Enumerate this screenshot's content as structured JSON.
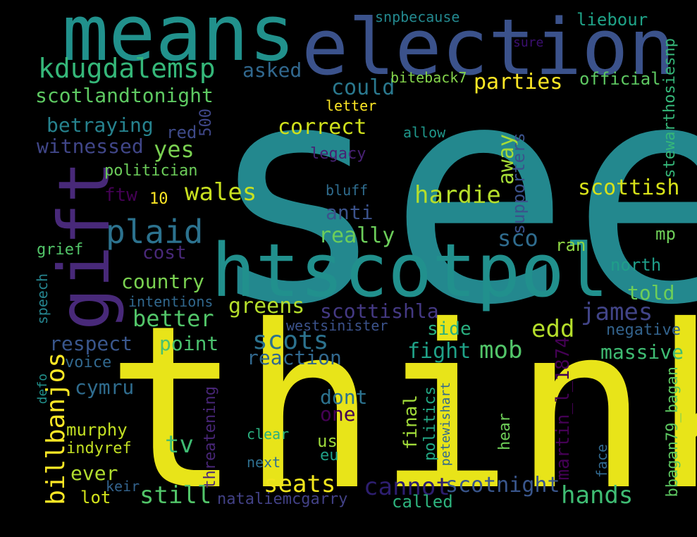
{
  "words": [
    {
      "text": "see",
      "color": "#23888e"
    },
    {
      "text": "think",
      "color": "#e8e419"
    },
    {
      "text": "election",
      "color": "#3b528b"
    },
    {
      "text": "means",
      "color": "#21918c"
    },
    {
      "text": "htscotpol",
      "color": "#21908d"
    },
    {
      "text": "gift",
      "color": "#482979"
    },
    {
      "text": "kdugdalemsp",
      "color": "#35b779"
    },
    {
      "text": "plaid",
      "color": "#2c728e"
    },
    {
      "text": "scotlandtonight",
      "color": "#5ec962"
    },
    {
      "text": "betraying",
      "color": "#26828e"
    },
    {
      "text": "witnessed",
      "color": "#404688"
    },
    {
      "text": "yes",
      "color": "#7ad151"
    },
    {
      "text": "red",
      "color": "#3e4a89"
    },
    {
      "text": "politician",
      "color": "#6ccd5a"
    },
    {
      "text": "ftw",
      "color": "#440154"
    },
    {
      "text": "10",
      "color": "#fde725"
    },
    {
      "text": "wales",
      "color": "#c8e020"
    },
    {
      "text": "500",
      "color": "#3f4788"
    },
    {
      "text": "asked",
      "color": "#31688e"
    },
    {
      "text": "could",
      "color": "#2a788e"
    },
    {
      "text": "parties",
      "color": "#fde725"
    },
    {
      "text": "correct",
      "color": "#d0e11c"
    },
    {
      "text": "letter",
      "color": "#fde725"
    },
    {
      "text": "biteback7",
      "color": "#84d44b"
    },
    {
      "text": "official",
      "color": "#5ec962"
    },
    {
      "text": "snpbecause",
      "color": "#23888e"
    },
    {
      "text": "liebour",
      "color": "#1fa287"
    },
    {
      "text": "sure",
      "color": "#3b0f70"
    },
    {
      "text": "allow",
      "color": "#1f978b"
    },
    {
      "text": "stewarthosiesnp",
      "color": "#35b779"
    },
    {
      "text": "legacy",
      "color": "#482173"
    },
    {
      "text": "away",
      "color": "#a5db36"
    },
    {
      "text": "supporters",
      "color": "#3b528b"
    },
    {
      "text": "hardie",
      "color": "#b5de2b"
    },
    {
      "text": "scottish",
      "color": "#d8e219"
    },
    {
      "text": "bluff",
      "color": "#2f6c8e"
    },
    {
      "text": "anti",
      "color": "#3b528b"
    },
    {
      "text": "really",
      "color": "#6ccd5a"
    },
    {
      "text": "sco",
      "color": "#2f6c8e"
    },
    {
      "text": "mp",
      "color": "#6ece58"
    },
    {
      "text": "ran",
      "color": "#8fd744"
    },
    {
      "text": "north",
      "color": "#1f9e89"
    },
    {
      "text": "told",
      "color": "#6ece58"
    },
    {
      "text": "cost",
      "color": "#482878"
    },
    {
      "text": "grief",
      "color": "#52c569"
    },
    {
      "text": "country",
      "color": "#7ad151"
    },
    {
      "text": "greens",
      "color": "#b5de2b"
    },
    {
      "text": "intentions",
      "color": "#31688e"
    },
    {
      "text": "better",
      "color": "#52c569"
    },
    {
      "text": "speech",
      "color": "#25848e"
    },
    {
      "text": "scottishla",
      "color": "#443983"
    },
    {
      "text": "james",
      "color": "#414487"
    },
    {
      "text": "westsinister",
      "color": "#3b528b"
    },
    {
      "text": "negative",
      "color": "#33638d"
    },
    {
      "text": "edd",
      "color": "#b5de2b"
    },
    {
      "text": "side",
      "color": "#29af7f"
    },
    {
      "text": "respect",
      "color": "#39568c"
    },
    {
      "text": "point",
      "color": "#4ac16d"
    },
    {
      "text": "scots",
      "color": "#2c728e"
    },
    {
      "text": "mob",
      "color": "#52c569"
    },
    {
      "text": "fight",
      "color": "#1fa187"
    },
    {
      "text": "massive",
      "color": "#3fbc73"
    },
    {
      "text": "reaction",
      "color": "#31688e"
    },
    {
      "text": "martin_l_1874",
      "color": "#440154"
    },
    {
      "text": "voice",
      "color": "#31688e"
    },
    {
      "text": "defo",
      "color": "#21918c"
    },
    {
      "text": "billbanjos",
      "color": "#fde725"
    },
    {
      "text": "cymru",
      "color": "#2f6c8e"
    },
    {
      "text": "dont",
      "color": "#2c728e"
    },
    {
      "text": "one",
      "color": "#440154"
    },
    {
      "text": "final",
      "color": "#a0da39"
    },
    {
      "text": "politics",
      "color": "#22a884"
    },
    {
      "text": "petewishart",
      "color": "#31688e"
    },
    {
      "text": "bbagan79_bagan",
      "color": "#5ec962"
    },
    {
      "text": "murphy",
      "color": "#c2df23"
    },
    {
      "text": "threatening",
      "color": "#482677"
    },
    {
      "text": "clear",
      "color": "#2ab07f"
    },
    {
      "text": "us",
      "color": "#9dd93b"
    },
    {
      "text": "eu",
      "color": "#1fa088"
    },
    {
      "text": "hear",
      "color": "#6ece58"
    },
    {
      "text": "face",
      "color": "#31688e"
    },
    {
      "text": "indyref",
      "color": "#c2df23"
    },
    {
      "text": "tv",
      "color": "#3fbc73"
    },
    {
      "text": "next",
      "color": "#2e6f8e"
    },
    {
      "text": "ever",
      "color": "#b0dd2f"
    },
    {
      "text": "seats",
      "color": "#f1e51d"
    },
    {
      "text": "cannot",
      "color": "#2d1e6f"
    },
    {
      "text": "scotnight",
      "color": "#39568c"
    },
    {
      "text": "hands",
      "color": "#3fbc73"
    },
    {
      "text": "keir",
      "color": "#33638d"
    },
    {
      "text": "still",
      "color": "#52c569"
    },
    {
      "text": "lot",
      "color": "#d2e21b"
    },
    {
      "text": "nataliemcgarry",
      "color": "#424186"
    },
    {
      "text": "called",
      "color": "#2db27d"
    }
  ]
}
